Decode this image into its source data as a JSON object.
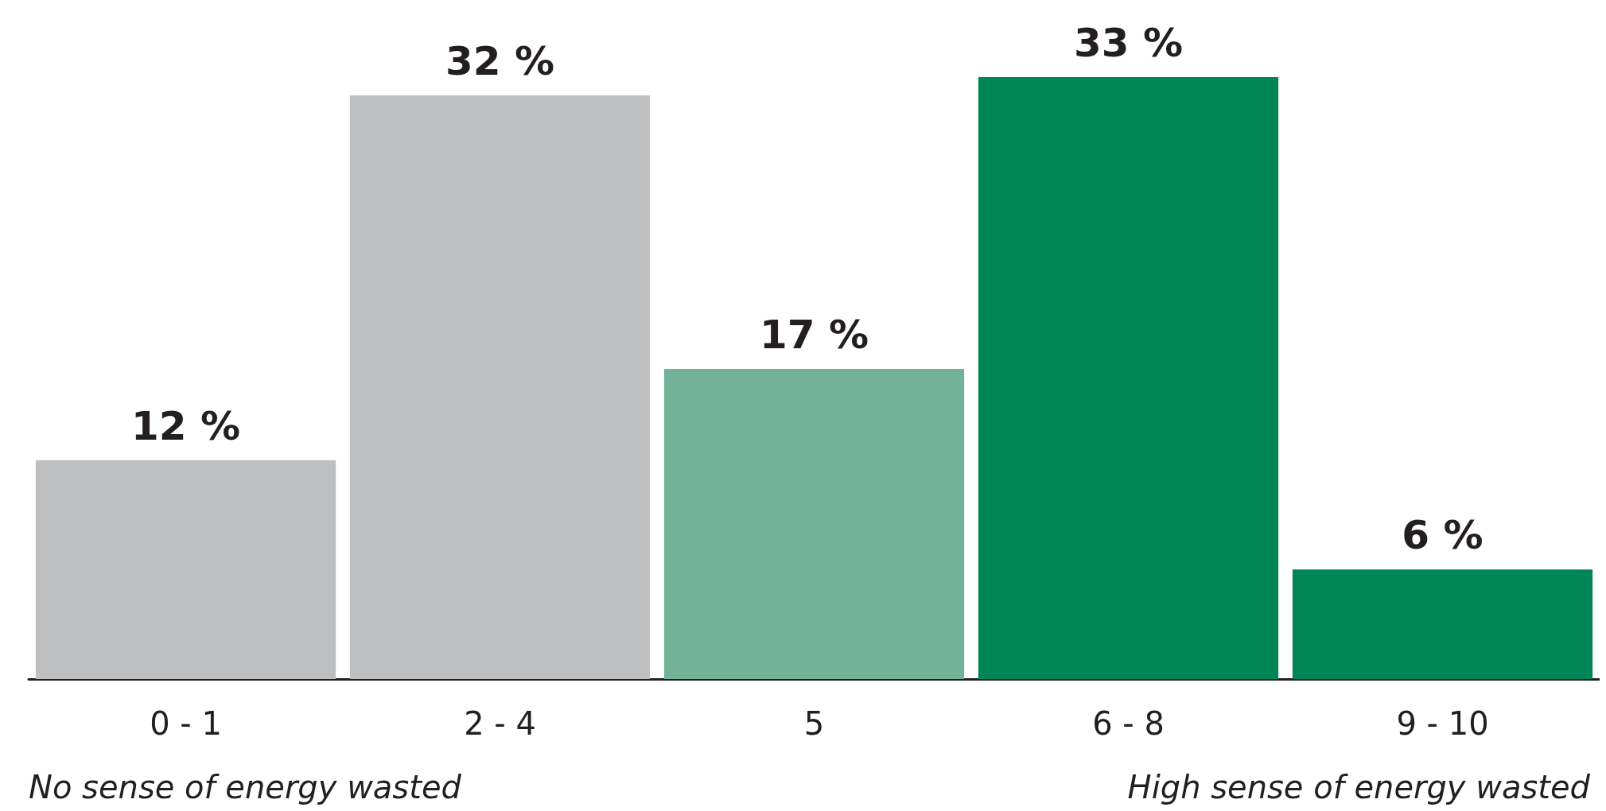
{
  "chart_data": {
    "type": "bar",
    "categories": [
      "0 - 1",
      "2 - 4",
      "5",
      "6 - 8",
      "9 - 10"
    ],
    "values": [
      12,
      32,
      17,
      33,
      6
    ],
    "value_labels": [
      "12 %",
      "32 %",
      "17 %",
      "33 %",
      "6 %"
    ],
    "colors": [
      "#bebfc1",
      "#bebfc1",
      "#72b39a",
      "#008556",
      "#008556"
    ],
    "annotations": [
      "No sense of energy wasted",
      "High sense of energy wasted"
    ]
  }
}
